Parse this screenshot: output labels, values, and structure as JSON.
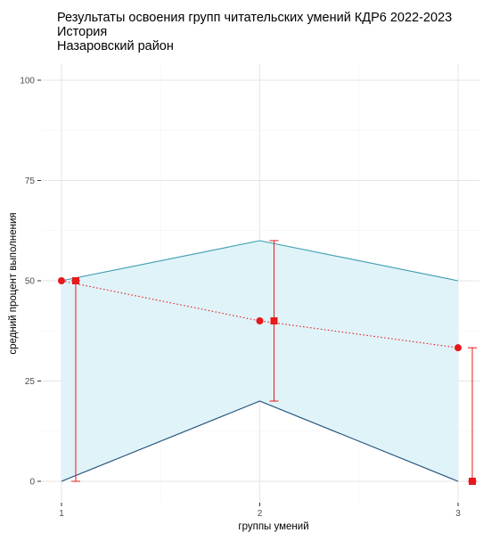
{
  "chart_data": {
    "type": "line",
    "title": "Результаты освоения групп читательских умений КДР6 2022-2023",
    "subtitle_lines": [
      "История",
      "Назаровский район"
    ],
    "xlabel": "группы умений",
    "ylabel": "средний процент выполнения",
    "categories": [
      1,
      2,
      3
    ],
    "xlim": [
      0.95,
      3.05
    ],
    "ylim": [
      -5,
      105
    ],
    "yticks": [
      0,
      25,
      50,
      75,
      100
    ],
    "grid": true,
    "series": [
      {
        "role": "upper-bound",
        "values": [
          50,
          60,
          50
        ],
        "color": "#3a9cb0"
      },
      {
        "role": "lower-bound",
        "values": [
          0,
          20,
          0
        ],
        "color": "#1f4e79"
      },
      {
        "role": "mean",
        "values": [
          50,
          40,
          33.3
        ],
        "color": "#e41a1c",
        "marker": "circle",
        "style": "dotted"
      },
      {
        "role": "median-range",
        "median": [
          50,
          40,
          0
        ],
        "lower": [
          0,
          20,
          0
        ],
        "upper": [
          50,
          60,
          33.3
        ],
        "color": "#e41a1c",
        "marker": "square"
      }
    ],
    "band_fill": "#dff3f8"
  }
}
